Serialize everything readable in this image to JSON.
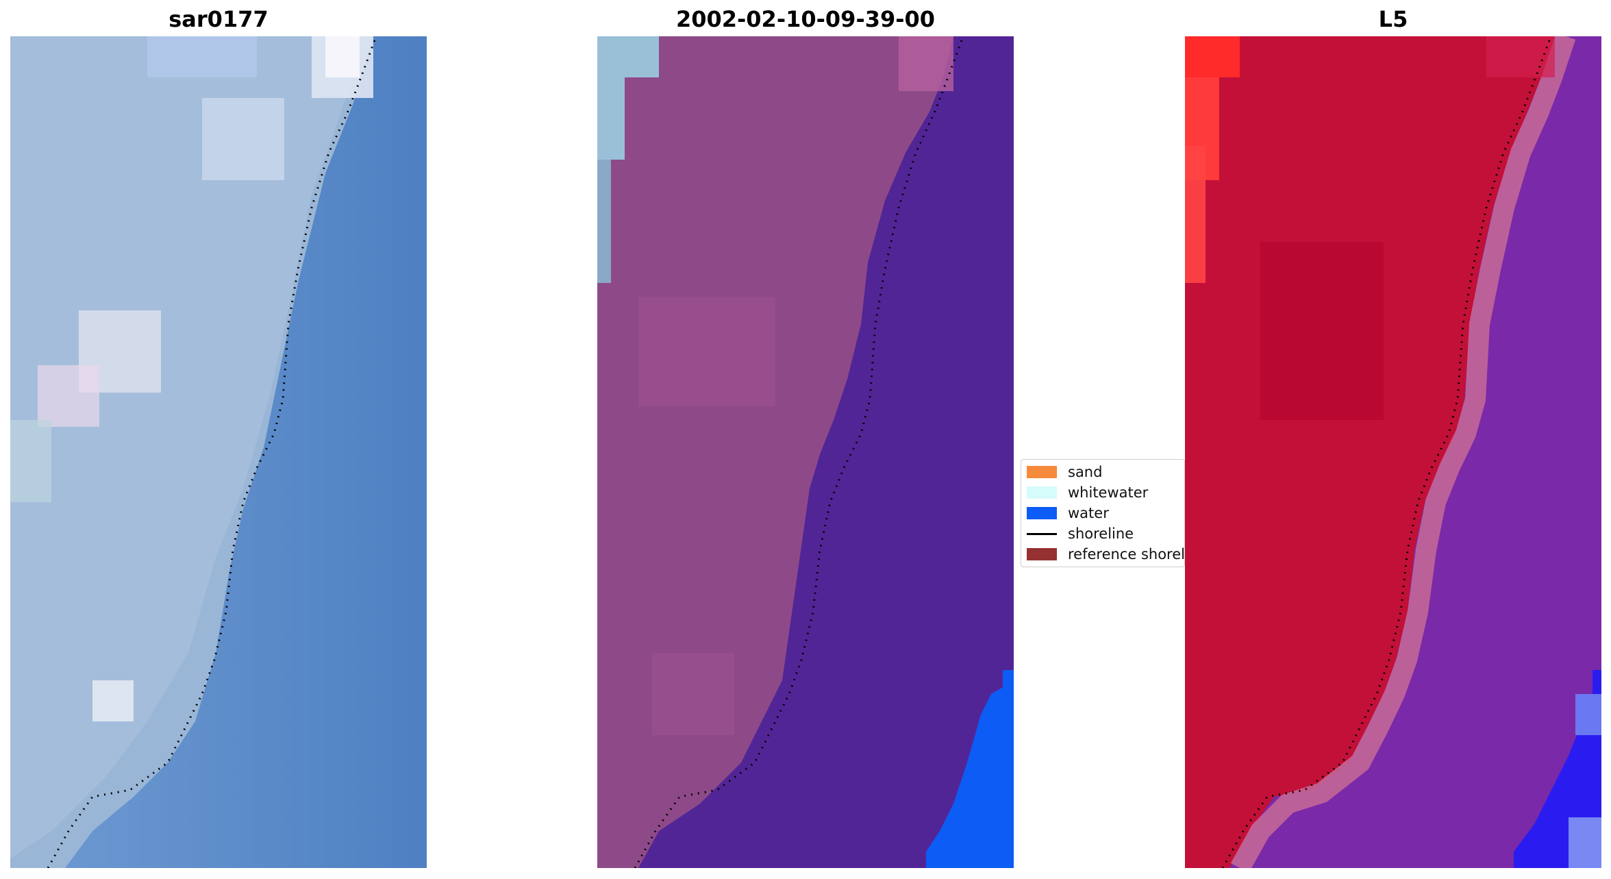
{
  "panels": [
    {
      "title": "sar0177"
    },
    {
      "title": "2002-02-10-09-39-00"
    },
    {
      "title": "L5"
    }
  ],
  "legend": {
    "items": [
      {
        "label": "sand",
        "color": "#f58a3c",
        "kind": "patch"
      },
      {
        "label": "whitewater",
        "color": "#d6fbfb",
        "kind": "patch"
      },
      {
        "label": "water",
        "color": "#0c5cf5",
        "kind": "patch"
      },
      {
        "label": "shoreline",
        "color": "#000000",
        "kind": "line"
      },
      {
        "label": "reference shoreli",
        "color": "#963131",
        "kind": "patch"
      }
    ]
  },
  "colors": {
    "rgb_water": "#4e80c2",
    "rgb_land": "#9ab6d6",
    "rgb_whitewater": "#dfe6f3",
    "classified_land": "#8e4a88",
    "classified_water_class": "#522596",
    "classified_water_blue": "#0c5cf5",
    "classified_whitewater": "#9ac0d8",
    "ndwi_land": "#c21038",
    "ndwi_water": "#7a29a8",
    "ndwi_blue": "#2a1cf0",
    "ndwi_bright_red": "#ff2a2a"
  }
}
